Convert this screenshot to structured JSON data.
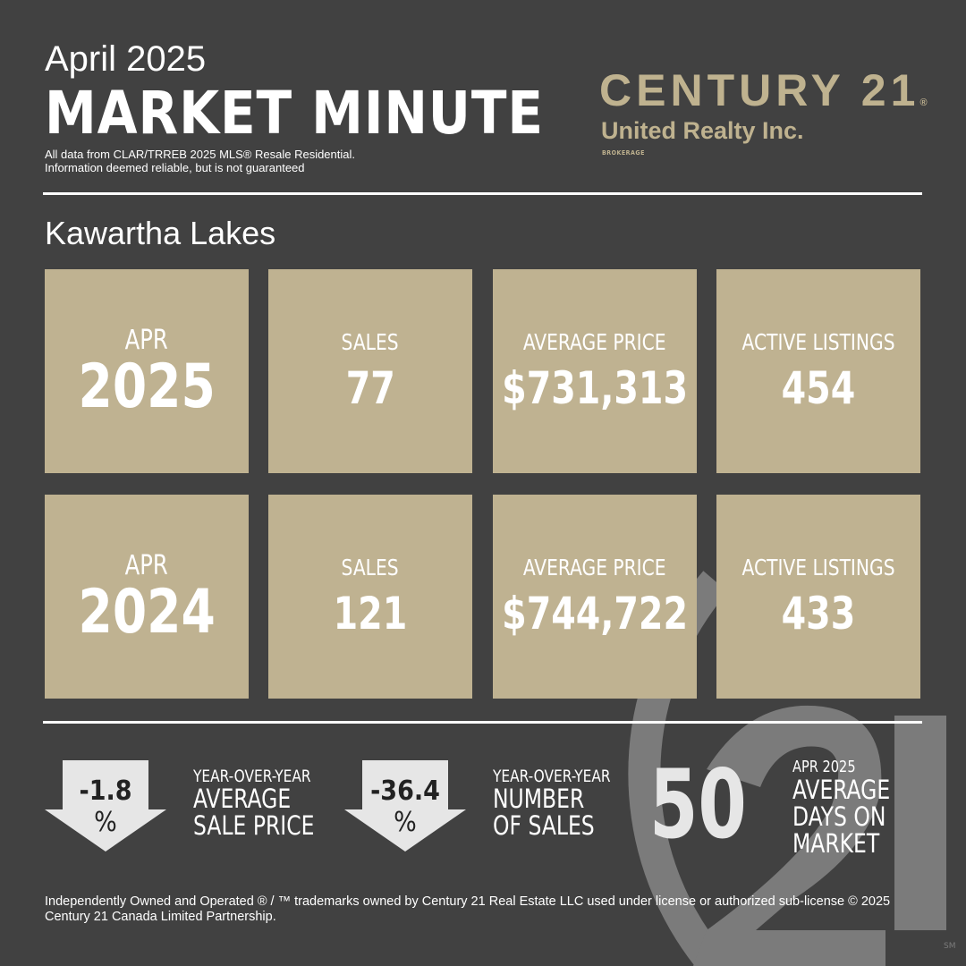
{
  "header": {
    "month_year": "April 2025",
    "title": "MARKET MINUTE",
    "disclaimer_line1": "All data from CLAR/TRREB 2025 MLS® Resale  Residential.",
    "disclaimer_line2": "Information deemed reliable, but is not guaranteed"
  },
  "logo": {
    "brand": "CENTURY 21",
    "reg": "®",
    "office": "United Realty Inc.",
    "sub": "BROKERAGE",
    "watermark": "(21",
    "sm": "SM"
  },
  "region": "Kawartha Lakes",
  "rows": [
    {
      "month": "APR",
      "year": "2025",
      "tiles": [
        {
          "label": "SALES",
          "value": "77"
        },
        {
          "label": "AVERAGE PRICE",
          "value": "$731,313"
        },
        {
          "label": "ACTIVE LISTINGS",
          "value": "454"
        }
      ]
    },
    {
      "month": "APR",
      "year": "2024",
      "tiles": [
        {
          "label": "SALES",
          "value": "121"
        },
        {
          "label": "AVERAGE PRICE",
          "value": "$744,722"
        },
        {
          "label": "ACTIVE LISTINGS",
          "value": "433"
        }
      ]
    }
  ],
  "summary": {
    "price_change": {
      "value": "-1.8",
      "unit": "%",
      "line1": "YEAR-OVER-YEAR",
      "line2": "AVERAGE",
      "line3": "SALE PRICE",
      "direction": "down"
    },
    "sales_change": {
      "value": "-36.4",
      "unit": "%",
      "line1": "YEAR-OVER-YEAR",
      "line2": "NUMBER",
      "line3": "OF SALES",
      "direction": "down"
    },
    "dom": {
      "value": "50",
      "line1": "APR 2025",
      "line2": "AVERAGE",
      "line3": "DAYS ON",
      "line4": "MARKET"
    }
  },
  "footer": "Independently Owned and Operated ® / ™ trademarks owned by Century 21 Real Estate LLC used under license or authorized sub-license © 2025 Century 21 Canada Limited Partnership.",
  "colors": {
    "background": "#414141",
    "tile": "#bfb291",
    "logo": "#bfb28f",
    "watermark": "#7b7b7b",
    "arrow": "#e6e6e6"
  }
}
